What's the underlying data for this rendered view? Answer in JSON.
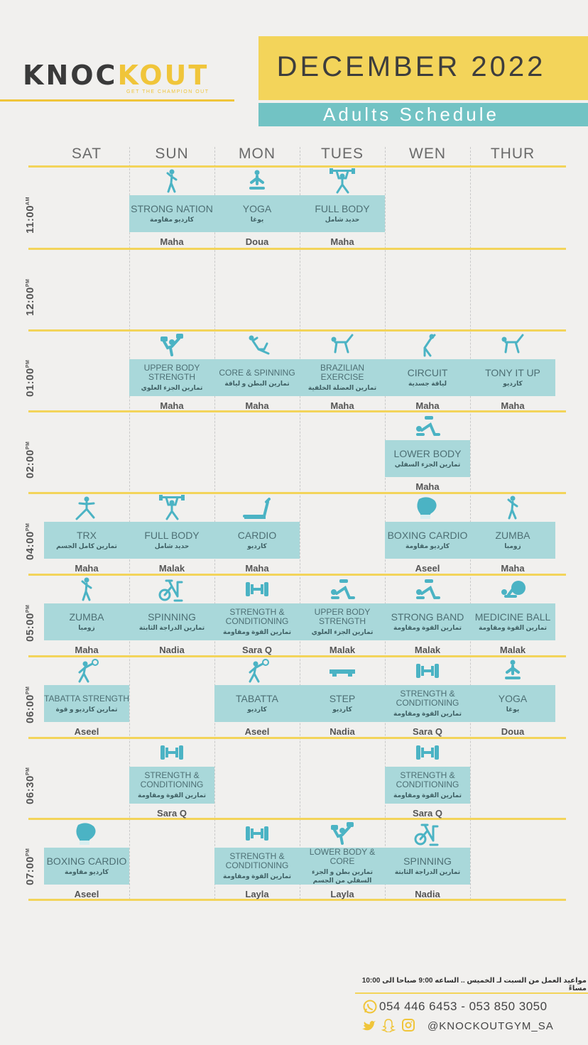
{
  "header": {
    "logo_part1": "KNOC",
    "logo_part2": "KOUT",
    "logo_tagline": "GET THE CHAMPION OUT",
    "month": "DECEMBER 2022",
    "subtitle": "Adults Schedule"
  },
  "days": [
    "SAT",
    "SUN",
    "MON",
    "TUES",
    "WEN",
    "THUR"
  ],
  "times": [
    {
      "t": "11:00",
      "s": "AM"
    },
    {
      "t": "12:00",
      "s": "PM"
    },
    {
      "t": "01:00",
      "s": "PM"
    },
    {
      "t": "02:00",
      "s": "PM"
    },
    {
      "t": "04:00",
      "s": "PM"
    },
    {
      "t": "05:00",
      "s": "PM"
    },
    {
      "t": "06:00",
      "s": "PM"
    },
    {
      "t": "06:30",
      "s": "PM"
    },
    {
      "t": "07:00",
      "s": "PM"
    }
  ],
  "classes": [
    {
      "row": 0,
      "day": 1,
      "name": "STRONG NATION",
      "ar": "كارديو مقاومة",
      "inst": "Maha",
      "icon": "zumba-icon"
    },
    {
      "row": 0,
      "day": 2,
      "name": "YOGA",
      "ar": "يوغا",
      "inst": "Doua",
      "icon": "yoga-icon"
    },
    {
      "row": 0,
      "day": 3,
      "name": "FULL BODY",
      "ar": "حديد شامل",
      "inst": "Maha",
      "icon": "weightlifting-icon"
    },
    {
      "row": 2,
      "day": 1,
      "name": "UPPER BODY STRENGTH",
      "ar": "تمارين الجزء العلوي",
      "inst": "Maha",
      "icon": "dumbbell-press-icon"
    },
    {
      "row": 2,
      "day": 2,
      "name": "CORE & SPINNING",
      "ar": "تمارين البطن و لياقة",
      "inst": "Maha",
      "icon": "situp-icon"
    },
    {
      "row": 2,
      "day": 3,
      "name": "BRAZILIAN EXERCISE",
      "ar": "تمارين العضلة الخلفية",
      "inst": "Maha",
      "icon": "kickback-icon"
    },
    {
      "row": 2,
      "day": 4,
      "name": "CIRCUIT",
      "ar": "لياقة جسدية",
      "inst": "Maha",
      "icon": "stretch-icon"
    },
    {
      "row": 2,
      "day": 5,
      "name": "TONY IT UP",
      "ar": "كارديو",
      "inst": "Maha",
      "icon": "kickback-icon"
    },
    {
      "row": 3,
      "day": 4,
      "name": "LOWER BODY",
      "ar": "تمارين الجزء السفلي",
      "inst": "Maha",
      "icon": "glute-bridge-icon"
    },
    {
      "row": 4,
      "day": 0,
      "name": "TRX",
      "ar": "تمارين كامل الجسم",
      "inst": "Maha",
      "icon": "lunge-icon"
    },
    {
      "row": 4,
      "day": 1,
      "name": "FULL BODY",
      "ar": "حديد شامل",
      "inst": "Malak",
      "icon": "weightlifting-icon"
    },
    {
      "row": 4,
      "day": 2,
      "name": "CARDIO",
      "ar": "كارديو",
      "inst": "Maha",
      "icon": "treadmill-icon"
    },
    {
      "row": 4,
      "day": 4,
      "name": "BOXING CARDIO",
      "ar": "كارديو مقاومة",
      "inst": "Aseel",
      "icon": "boxing-glove-icon"
    },
    {
      "row": 4,
      "day": 5,
      "name": "ZUMBA",
      "ar": "زومبا",
      "inst": "Maha",
      "icon": "zumba-icon"
    },
    {
      "row": 5,
      "day": 0,
      "name": "ZUMBA",
      "ar": "زومبا",
      "inst": "Maha",
      "icon": "zumba-icon"
    },
    {
      "row": 5,
      "day": 1,
      "name": "SPINNING",
      "ar": "تمارين الدراجة الثابتة",
      "inst": "Nadia",
      "icon": "spin-bike-icon"
    },
    {
      "row": 5,
      "day": 2,
      "name": "STRENGTH & CONDITIONING",
      "ar": "تمارين القوة ومقاومة",
      "inst": "Sara Q",
      "icon": "barbell-icon"
    },
    {
      "row": 5,
      "day": 3,
      "name": "UPPER BODY STRENGTH",
      "ar": "تمارين الجزء العلوي",
      "inst": "Malak",
      "icon": "glute-bridge-icon"
    },
    {
      "row": 5,
      "day": 4,
      "name": "STRONG BAND",
      "ar": "تمارين القوة ومقاومة",
      "inst": "Malak",
      "icon": "glute-bridge-icon"
    },
    {
      "row": 5,
      "day": 5,
      "name": "MEDICINE BALL",
      "ar": "تمارين القوة ومقاومة",
      "inst": "Malak",
      "icon": "medicine-ball-icon"
    },
    {
      "row": 6,
      "day": 0,
      "name": "TABATTA STRENGTH",
      "ar": "تمارين كارديو و قوة",
      "inst": "Aseel",
      "icon": "ball-throw-icon"
    },
    {
      "row": 6,
      "day": 2,
      "name": "TABATTA",
      "ar": "كارديو",
      "inst": "Aseel",
      "icon": "ball-throw-icon"
    },
    {
      "row": 6,
      "day": 3,
      "name": "STEP",
      "ar": "كارديو",
      "inst": "Nadia",
      "icon": "step-board-icon"
    },
    {
      "row": 6,
      "day": 4,
      "name": "STRENGTH & CONDITIONING",
      "ar": "تمارين القوة ومقاومة",
      "inst": "Sara Q",
      "icon": "barbell-icon"
    },
    {
      "row": 6,
      "day": 5,
      "name": "YOGA",
      "ar": "يوغا",
      "inst": "Doua",
      "icon": "yoga-icon"
    },
    {
      "row": 7,
      "day": 1,
      "name": "STRENGTH & CONDITIONING",
      "ar": "تمارين القوة ومقاومة",
      "inst": "Sara Q",
      "icon": "barbell-icon"
    },
    {
      "row": 7,
      "day": 4,
      "name": "STRENGTH & CONDITIONING",
      "ar": "تمارين القوة ومقاومة",
      "inst": "Sara Q",
      "icon": "barbell-icon"
    },
    {
      "row": 8,
      "day": 0,
      "name": "BOXING CARDIO",
      "ar": "كارديو مقاومة",
      "inst": "Aseel",
      "icon": "boxing-glove-icon"
    },
    {
      "row": 8,
      "day": 2,
      "name": "STRENGTH & CONDITIONING",
      "ar": "تمارين القوة ومقاومة",
      "inst": "Layla",
      "icon": "barbell-icon"
    },
    {
      "row": 8,
      "day": 3,
      "name": "LOWER BODY & CORE",
      "ar": "تمارين بطن و الجزء السفلي من الجسم",
      "inst": "Layla",
      "icon": "dumbbell-press-icon"
    },
    {
      "row": 8,
      "day": 4,
      "name": "SPINNING",
      "ar": "تمارين الدراجة الثابتة",
      "inst": "Nadia",
      "icon": "spin-bike-icon"
    }
  ],
  "footer": {
    "hours": "مواعيد العمل من السبت لـ الخميس .. الساعه 9:00 صباحا الى 10:00 مساءً",
    "phones": "054 446 6453 - 053 850 3050",
    "handle": "@KNOCKOUTGYM_SA"
  },
  "colors": {
    "yellow": "#f3d45a",
    "teal": "#72c3c4",
    "band": "#a9d8da",
    "icon": "#4bb3c4"
  }
}
